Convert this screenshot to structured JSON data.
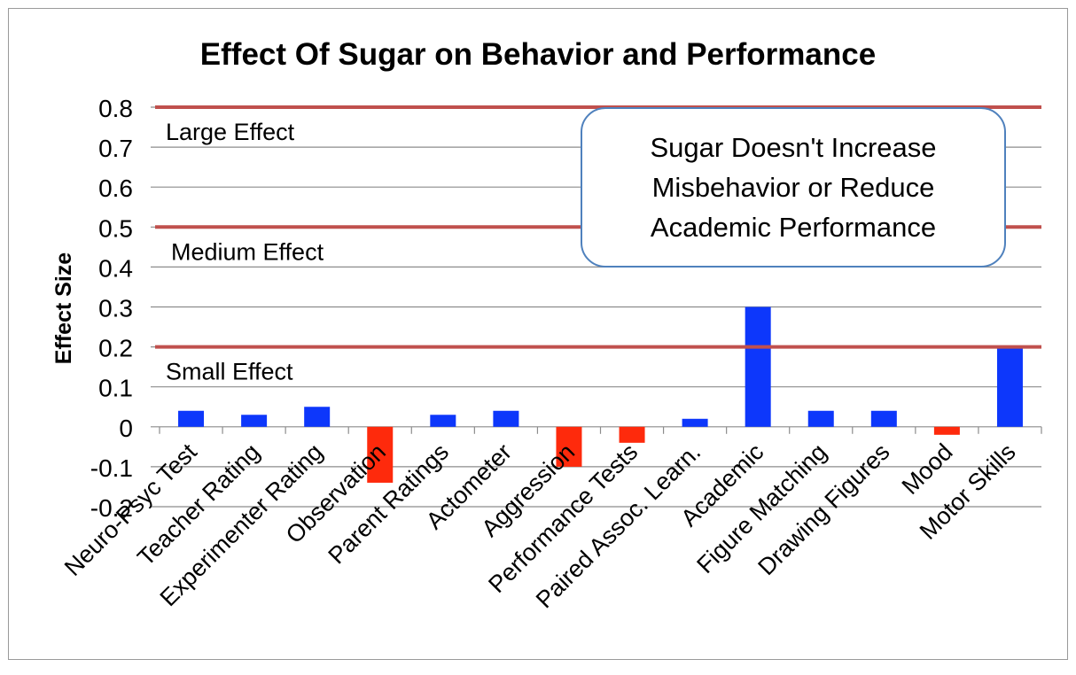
{
  "chart_data": {
    "type": "bar",
    "title": "Effect Of Sugar on Behavior and Performance",
    "xlabel": "",
    "ylabel": "Effect Size",
    "ylim": [
      -0.2,
      0.8
    ],
    "yticks": [
      "0.8",
      "0.7",
      "0.6",
      "0.5",
      "0.4",
      "0.3",
      "0.2",
      "0.1",
      "0",
      "-0.1",
      "-0.2"
    ],
    "ytick_values": [
      0.8,
      0.7,
      0.6,
      0.5,
      0.4,
      0.3,
      0.2,
      0.1,
      0,
      -0.1,
      -0.2
    ],
    "grid": true,
    "categories": [
      "Neuro-Psyc Test",
      "Teacher Rating",
      "Experimenter Rating",
      "Observation",
      "Parent Ratings",
      "Actometer",
      "Aggression",
      "Performance Tests",
      "Paired Assoc. Learn.",
      "Academic",
      "Figure Matching",
      "Drawing Figures",
      "Mood",
      "Motor Skills"
    ],
    "values": [
      0.04,
      0.03,
      0.05,
      -0.14,
      0.03,
      0.04,
      -0.1,
      -0.04,
      0.02,
      0.3,
      0.04,
      0.04,
      -0.02,
      0.2
    ],
    "colors": {
      "positive": "#0d37fb",
      "negative": "#fe2a0c",
      "threshold_line": "#c0504d",
      "gridline": "#8c8c8c",
      "callout_border": "#4f81bd"
    },
    "threshold_lines": [
      {
        "value": 0.8,
        "label": "Large Effect"
      },
      {
        "value": 0.5,
        "label": "Medium Effect"
      },
      {
        "value": 0.2,
        "label": "Small Effect"
      }
    ],
    "annotation": {
      "lines": [
        "Sugar Doesn't Increase",
        "Misbehavior or Reduce",
        "Academic Performance"
      ],
      "placement": "top-right"
    }
  }
}
